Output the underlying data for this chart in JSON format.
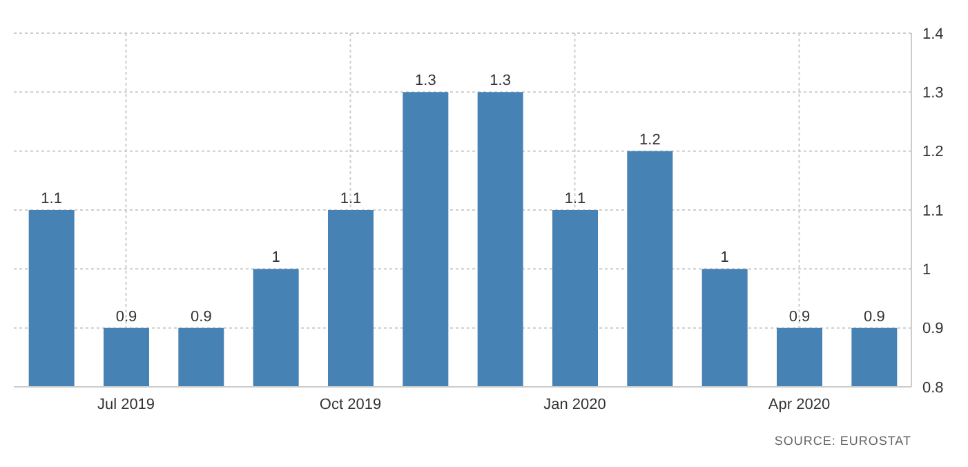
{
  "chart_data": {
    "type": "bar",
    "categories": [
      null,
      "Jul 2019",
      null,
      null,
      "Oct 2019",
      null,
      null,
      "Jan 2020",
      null,
      null,
      "Apr 2020",
      null
    ],
    "values": [
      1.1,
      0.9,
      0.9,
      1,
      1.1,
      1.3,
      1.3,
      1.1,
      1.2,
      1,
      0.9,
      0.9
    ],
    "color": "#4682b4",
    "ylim": [
      0.8,
      1.4
    ],
    "yticks": [
      0.8,
      0.9,
      1,
      1.1,
      1.2,
      1.3,
      1.4
    ],
    "grid": true,
    "data_labels": true,
    "annotations": [
      "SOURCE: EUROSTAT"
    ]
  }
}
